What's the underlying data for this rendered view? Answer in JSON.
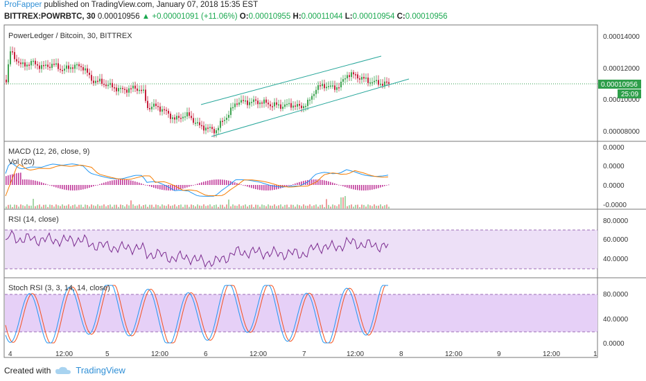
{
  "header": {
    "author": "ProFapper",
    "published_text": "published on TradingView.com, January 07, 2018 15:35 EST",
    "symbol": "BITTREX:POWRBTC, 30",
    "last_price": "0.00010956",
    "change": "▲ +0.00001091 (+11.06%)",
    "o_label": "O:",
    "o_value": "0.00010955",
    "h_label": "H:",
    "h_value": "0.00011044",
    "l_label": "L:",
    "l_value": "0.00010954",
    "c_label": "C:",
    "c_value": "0.00010956"
  },
  "panes": {
    "price": {
      "title": "PowerLedger / Bitcoin, 30, BITTREX",
      "axis_ticks": [
        "0.00014000",
        "0.00012000",
        "0.00010000",
        "0.00008000"
      ],
      "last_badge": "0.00010956",
      "countdown_badge": "25:09"
    },
    "macd": {
      "title": "MACD (12, 26, close, 9)",
      "vol_title": "Vol (20)",
      "axis_ticks": [
        "0.0000",
        "0.0000",
        "0.0000",
        "-0.0000"
      ]
    },
    "rsi": {
      "title": "RSI (14, close)",
      "axis_ticks": [
        "80.0000",
        "60.0000",
        "40.0000"
      ]
    },
    "stoch": {
      "title": "Stoch RSI (3, 3, 14, 14, close)",
      "axis_ticks": [
        "80.0000",
        "40.0000",
        "0.0000"
      ]
    }
  },
  "time_axis": [
    "4",
    "12:00",
    "5",
    "12:00",
    "6",
    "12:00",
    "7",
    "12:00",
    "8",
    "12:00",
    "9",
    "12:00",
    "1"
  ],
  "footer": {
    "created_with": "Created with",
    "brand": "TradingView"
  },
  "colors": {
    "up": "#3da350",
    "down": "#c6213d",
    "macd_line": "#2196f3",
    "signal_line": "#f57c00",
    "rsi_line": "#7b2b8f",
    "stoch_k": "#2196f3",
    "stoch_d": "#f4511e",
    "channel": "#26a69a",
    "badge": "#2e9e4a"
  }
}
